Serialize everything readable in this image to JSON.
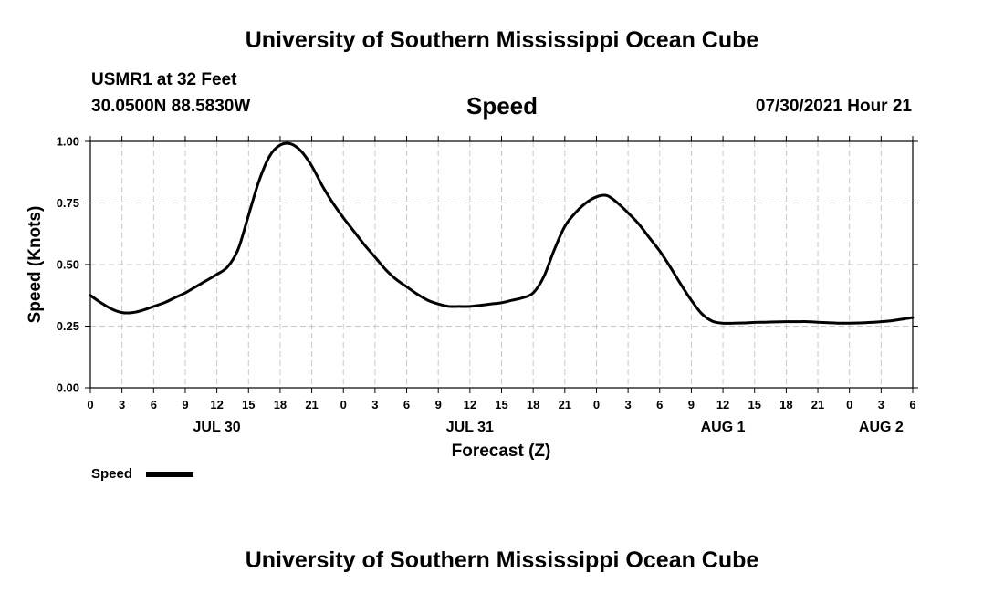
{
  "page": {
    "title_top": "University of Southern Mississippi Ocean Cube",
    "station": "USMR1 at 32 Feet",
    "coords": "30.0500N  88.5830W",
    "variable": "Speed",
    "datetime": "07/30/2021 Hour 21",
    "title_bottom": "University of Southern Mississippi Ocean Cube"
  },
  "colors": {
    "line": "#000000",
    "grid": "#c8c8c8",
    "background": "#ffffff"
  },
  "chart_data": {
    "type": "line",
    "title": "Speed",
    "xlabel": "Forecast (Z)",
    "ylabel": "Speed (Knots)",
    "xlim": [
      0,
      78
    ],
    "ylim": [
      0,
      1.0
    ],
    "grid": true,
    "y_ticks": [
      0.0,
      0.25,
      0.5,
      0.75,
      1.0
    ],
    "y_tick_labels": [
      "0.00",
      "0.25",
      "0.50",
      "0.75",
      "1.00"
    ],
    "x_ticks": [
      0,
      3,
      6,
      9,
      12,
      15,
      18,
      21,
      24,
      27,
      30,
      33,
      36,
      39,
      42,
      45,
      48,
      51,
      54,
      57,
      60,
      63,
      66,
      69,
      72,
      75,
      78
    ],
    "x_tick_labels": [
      "0",
      "3",
      "6",
      "9",
      "12",
      "15",
      "18",
      "21",
      "0",
      "3",
      "6",
      "9",
      "12",
      "15",
      "18",
      "21",
      "0",
      "3",
      "6",
      "9",
      "12",
      "15",
      "18",
      "21",
      "0",
      "3",
      "6"
    ],
    "day_labels": [
      {
        "label": "JUL 30",
        "x": 12
      },
      {
        "label": "JUL 31",
        "x": 36
      },
      {
        "label": "AUG 1",
        "x": 60
      },
      {
        "label": "AUG 2",
        "x": 75
      }
    ],
    "legend": {
      "label": "Speed",
      "position": "bottom-left"
    },
    "series": [
      {
        "name": "Speed",
        "x": [
          0,
          1,
          2,
          3,
          4,
          5,
          6,
          7,
          8,
          9,
          10,
          11,
          12,
          13,
          14,
          15,
          16,
          17,
          18,
          19,
          20,
          21,
          22,
          23,
          24,
          25,
          26,
          27,
          28,
          29,
          30,
          31,
          32,
          33,
          34,
          35,
          36,
          37,
          38,
          39,
          40,
          41,
          42,
          43,
          44,
          45,
          46,
          47,
          48,
          49,
          50,
          51,
          52,
          53,
          54,
          55,
          56,
          57,
          58,
          59,
          60,
          61,
          62,
          63,
          64,
          65,
          66,
          67,
          68,
          69,
          70,
          71,
          72,
          73,
          74,
          75,
          76,
          77,
          78
        ],
        "values": [
          0.375,
          0.345,
          0.32,
          0.305,
          0.305,
          0.315,
          0.33,
          0.345,
          0.365,
          0.385,
          0.41,
          0.435,
          0.46,
          0.49,
          0.56,
          0.7,
          0.84,
          0.94,
          0.985,
          0.99,
          0.96,
          0.9,
          0.82,
          0.75,
          0.69,
          0.635,
          0.58,
          0.53,
          0.48,
          0.44,
          0.41,
          0.38,
          0.355,
          0.34,
          0.33,
          0.33,
          0.33,
          0.335,
          0.34,
          0.345,
          0.355,
          0.365,
          0.385,
          0.45,
          0.56,
          0.655,
          0.71,
          0.75,
          0.775,
          0.78,
          0.75,
          0.71,
          0.665,
          0.61,
          0.555,
          0.49,
          0.42,
          0.355,
          0.3,
          0.27,
          0.262,
          0.262,
          0.263,
          0.265,
          0.266,
          0.267,
          0.268,
          0.268,
          0.268,
          0.266,
          0.264,
          0.262,
          0.262,
          0.263,
          0.265,
          0.268,
          0.272,
          0.278,
          0.285
        ]
      }
    ]
  }
}
